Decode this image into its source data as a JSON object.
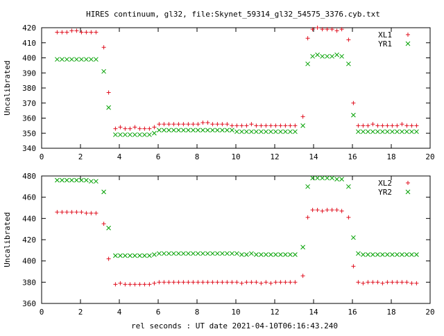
{
  "title": "HIRES continuum, gl32, file:Skynet_59314_gl32_54575_3376.cyb.txt",
  "xlabel": "rel seconds : UT date 2021-04-10T06:16:43.240",
  "colors": {
    "XL": "#e0101f",
    "YR": "#00a000",
    "axis": "#000000",
    "background": "#ffffff"
  },
  "chart_data": [
    {
      "type": "scatter",
      "ylabel": "Uncalibrated",
      "xlim": [
        0,
        20
      ],
      "ylim": [
        340,
        420
      ],
      "xticks": [
        0,
        2,
        4,
        6,
        8,
        10,
        12,
        14,
        16,
        18,
        20
      ],
      "yticks": [
        340,
        350,
        360,
        370,
        380,
        390,
        400,
        410,
        420
      ],
      "legend_position": "top-right",
      "series": [
        {
          "name": "XL1",
          "marker": "plus",
          "x": [
            0.8,
            1.05,
            1.3,
            1.55,
            1.8,
            2.05,
            2.3,
            2.55,
            2.8,
            3.2,
            3.45,
            3.8,
            4.05,
            4.3,
            4.55,
            4.8,
            5.05,
            5.3,
            5.55,
            5.8,
            6.05,
            6.3,
            6.55,
            6.8,
            7.05,
            7.3,
            7.55,
            7.8,
            8.05,
            8.3,
            8.55,
            8.8,
            9.05,
            9.3,
            9.55,
            9.8,
            10.05,
            10.3,
            10.55,
            10.8,
            11.05,
            11.3,
            11.55,
            11.8,
            12.05,
            12.3,
            12.55,
            12.8,
            13.05,
            13.45,
            13.7,
            13.95,
            14.2,
            14.45,
            14.7,
            14.95,
            15.2,
            15.45,
            15.8,
            16.05,
            16.3,
            16.55,
            16.8,
            17.05,
            17.3,
            17.55,
            17.8,
            18.05,
            18.3,
            18.55,
            18.8,
            19.05,
            19.3
          ],
          "y": [
            417,
            417,
            417,
            418,
            418,
            417,
            417,
            417,
            417,
            407,
            377,
            353,
            354,
            353,
            353,
            354,
            353,
            353,
            353,
            354,
            356,
            356,
            356,
            356,
            356,
            356,
            356,
            356,
            356,
            357,
            357,
            356,
            356,
            356,
            356,
            355,
            355,
            355,
            355,
            356,
            355,
            355,
            355,
            355,
            355,
            355,
            355,
            355,
            355,
            361,
            413,
            419,
            420,
            419,
            419,
            419,
            418,
            419,
            412,
            370,
            355,
            355,
            355,
            356,
            355,
            355,
            355,
            355,
            355,
            356,
            355,
            355,
            355
          ]
        },
        {
          "name": "YR1",
          "marker": "cross",
          "x": [
            0.8,
            1.05,
            1.3,
            1.55,
            1.8,
            2.05,
            2.3,
            2.55,
            2.8,
            3.2,
            3.45,
            3.8,
            4.05,
            4.3,
            4.55,
            4.8,
            5.05,
            5.3,
            5.55,
            5.8,
            6.05,
            6.3,
            6.55,
            6.8,
            7.05,
            7.3,
            7.55,
            7.8,
            8.05,
            8.3,
            8.55,
            8.8,
            9.05,
            9.3,
            9.55,
            9.8,
            10.05,
            10.3,
            10.55,
            10.8,
            11.05,
            11.3,
            11.55,
            11.8,
            12.05,
            12.3,
            12.55,
            12.8,
            13.05,
            13.45,
            13.7,
            13.95,
            14.2,
            14.45,
            14.7,
            14.95,
            15.2,
            15.45,
            15.8,
            16.05,
            16.3,
            16.55,
            16.8,
            17.05,
            17.3,
            17.55,
            17.8,
            18.05,
            18.3,
            18.55,
            18.8,
            19.05,
            19.3
          ],
          "y": [
            399,
            399,
            399,
            399,
            399,
            399,
            399,
            399,
            399,
            391,
            367,
            349,
            349,
            349,
            349,
            349,
            349,
            349,
            349,
            350,
            352,
            352,
            352,
            352,
            352,
            352,
            352,
            352,
            352,
            352,
            352,
            352,
            352,
            352,
            352,
            352,
            351,
            351,
            351,
            351,
            351,
            351,
            351,
            351,
            351,
            351,
            351,
            351,
            351,
            355,
            396,
            401,
            402,
            401,
            401,
            401,
            402,
            401,
            396,
            362,
            351,
            351,
            351,
            351,
            351,
            351,
            351,
            351,
            351,
            351,
            351,
            351,
            351
          ]
        }
      ]
    },
    {
      "type": "scatter",
      "ylabel": "Uncalibrated",
      "xlabel": "rel seconds : UT date 2021-04-10T06:16:43.240",
      "xlim": [
        0,
        20
      ],
      "ylim": [
        360,
        480
      ],
      "xticks": [
        0,
        2,
        4,
        6,
        8,
        10,
        12,
        14,
        16,
        18,
        20
      ],
      "yticks": [
        360,
        380,
        400,
        420,
        440,
        460,
        480
      ],
      "legend_position": "top-right",
      "series": [
        {
          "name": "XL2",
          "marker": "plus",
          "x": [
            0.8,
            1.05,
            1.3,
            1.55,
            1.8,
            2.05,
            2.3,
            2.55,
            2.8,
            3.2,
            3.45,
            3.8,
            4.05,
            4.3,
            4.55,
            4.8,
            5.05,
            5.3,
            5.55,
            5.8,
            6.05,
            6.3,
            6.55,
            6.8,
            7.05,
            7.3,
            7.55,
            7.8,
            8.05,
            8.3,
            8.55,
            8.8,
            9.05,
            9.3,
            9.55,
            9.8,
            10.05,
            10.3,
            10.55,
            10.8,
            11.05,
            11.3,
            11.55,
            11.8,
            12.05,
            12.3,
            12.55,
            12.8,
            13.05,
            13.45,
            13.7,
            13.95,
            14.2,
            14.45,
            14.7,
            14.95,
            15.2,
            15.45,
            15.8,
            16.05,
            16.3,
            16.55,
            16.8,
            17.05,
            17.3,
            17.55,
            17.8,
            18.05,
            18.3,
            18.55,
            18.8,
            19.05,
            19.3
          ],
          "y": [
            446,
            446,
            446,
            446,
            446,
            446,
            445,
            445,
            445,
            435,
            402,
            378,
            379,
            378,
            378,
            378,
            378,
            378,
            378,
            379,
            380,
            380,
            380,
            380,
            380,
            380,
            380,
            380,
            380,
            380,
            380,
            380,
            380,
            380,
            380,
            380,
            380,
            379,
            380,
            380,
            380,
            379,
            380,
            379,
            380,
            380,
            380,
            380,
            380,
            386,
            441,
            448,
            448,
            447,
            448,
            448,
            448,
            447,
            441,
            395,
            380,
            379,
            380,
            380,
            380,
            379,
            380,
            380,
            380,
            380,
            380,
            379,
            379
          ]
        },
        {
          "name": "YR2",
          "marker": "cross",
          "x": [
            0.8,
            1.05,
            1.3,
            1.55,
            1.8,
            2.05,
            2.3,
            2.55,
            2.8,
            3.2,
            3.45,
            3.8,
            4.05,
            4.3,
            4.55,
            4.8,
            5.05,
            5.3,
            5.55,
            5.8,
            6.05,
            6.3,
            6.55,
            6.8,
            7.05,
            7.3,
            7.55,
            7.8,
            8.05,
            8.3,
            8.55,
            8.8,
            9.05,
            9.3,
            9.55,
            9.8,
            10.05,
            10.3,
            10.55,
            10.8,
            11.05,
            11.3,
            11.55,
            11.8,
            12.05,
            12.3,
            12.55,
            12.8,
            13.05,
            13.45,
            13.7,
            13.95,
            14.2,
            14.45,
            14.7,
            14.95,
            15.2,
            15.45,
            15.8,
            16.05,
            16.3,
            16.55,
            16.8,
            17.05,
            17.3,
            17.55,
            17.8,
            18.05,
            18.3,
            18.55,
            18.8,
            19.05,
            19.3
          ],
          "y": [
            476,
            476,
            476,
            476,
            476,
            476,
            476,
            475,
            475,
            465,
            431,
            405,
            405,
            405,
            405,
            405,
            405,
            405,
            405,
            406,
            407,
            407,
            407,
            407,
            407,
            407,
            407,
            407,
            407,
            407,
            407,
            407,
            407,
            407,
            407,
            407,
            407,
            406,
            406,
            407,
            406,
            406,
            406,
            406,
            406,
            406,
            406,
            406,
            406,
            413,
            470,
            478,
            478,
            478,
            478,
            478,
            477,
            477,
            470,
            422,
            407,
            406,
            406,
            406,
            406,
            406,
            406,
            406,
            406,
            406,
            406,
            406,
            406
          ]
        }
      ]
    }
  ]
}
